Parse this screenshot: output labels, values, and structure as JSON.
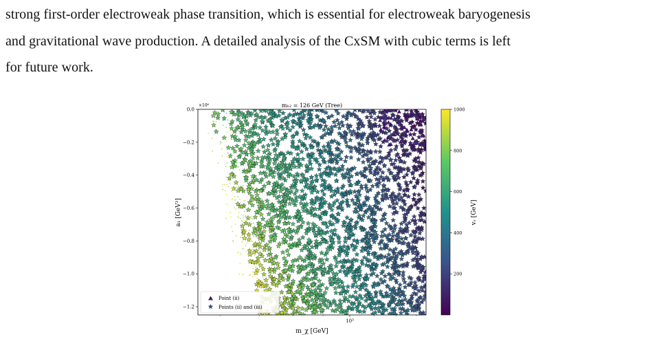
{
  "paragraph": {
    "lines": [
      "strong first-order electroweak phase transition, which is essential for electroweak baryogenesis",
      "and gravitational wave production. A detailed analysis of the CxSM with cubic terms is left",
      "for future work."
    ]
  },
  "chart_data": {
    "type": "scatter",
    "title": "m_{h_2} = 126 GeV (Tree)",
    "xlabel": "m_χ [GeV]",
    "ylabel": "a_1 [GeV^3]",
    "y_offset_label": "×10^6",
    "x_scale": "log",
    "x_tick_labels": [
      "10^3"
    ],
    "y_ticks": [
      0.0,
      -0.2,
      -0.4,
      -0.6,
      -0.8,
      -1.0,
      -1.2
    ],
    "y_tick_labels": [
      "0.0",
      "−0.2",
      "−0.4",
      "−0.6",
      "−0.8",
      "−1.0",
      "−1.2"
    ],
    "xlim": [
      550,
      1350
    ],
    "ylim": [
      -1.25,
      0.0
    ],
    "legend": {
      "placement": "bottom-left",
      "entries": [
        {
          "marker": "triangle",
          "label": "Point (ii)"
        },
        {
          "marker": "star",
          "label": "Points (ii) and (iii)"
        }
      ]
    },
    "colorbar": {
      "label": "v_S [GeV]",
      "range": [
        0,
        1000
      ],
      "ticks": [
        200,
        400,
        600,
        800,
        1000
      ],
      "colormap": [
        "#440154",
        "#3b528b",
        "#21918c",
        "#5ec962",
        "#fde725"
      ]
    }
  }
}
